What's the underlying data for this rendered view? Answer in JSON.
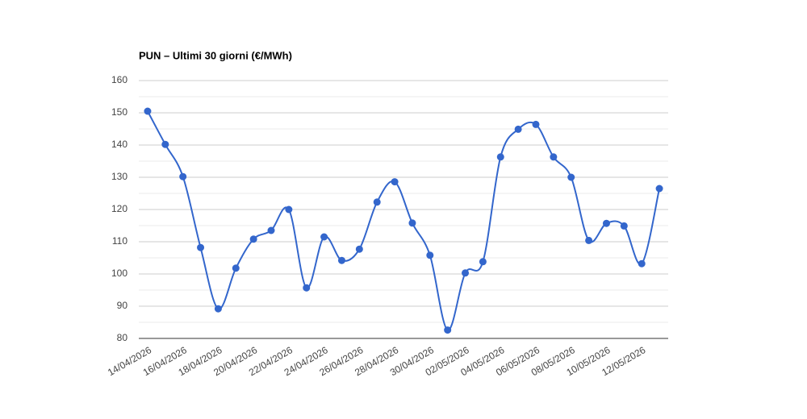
{
  "chart_data": {
    "type": "line",
    "title": "PUN – Ultimi 30 giorni (€/MWh)",
    "categories": [
      "14/04/2026",
      null,
      "16/04/2026",
      null,
      "18/04/2026",
      null,
      "20/04/2026",
      null,
      "22/04/2026",
      null,
      "24/04/2026",
      null,
      "26/04/2026",
      null,
      "28/04/2026",
      null,
      "30/04/2026",
      null,
      "02/05/2026",
      null,
      "04/05/2026",
      null,
      "06/05/2026",
      null,
      "08/05/2026",
      null,
      "10/05/2026",
      null,
      "12/05/2026",
      null
    ],
    "values": [
      150.5,
      140.2,
      130.2,
      108.2,
      89.2,
      101.8,
      110.8,
      113.5,
      120,
      95.7,
      111.5,
      104.2,
      107.7,
      122.3,
      128.6,
      115.8,
      105.8,
      82.6,
      100.3,
      103.8,
      136.3,
      144.9,
      146.4,
      136.3,
      130,
      110.4,
      115.7,
      114.9,
      103.2,
      126.5
    ],
    "color": "#3366cc",
    "ylim": [
      80,
      160
    ],
    "yticks": [
      80,
      90,
      100,
      110,
      120,
      130,
      140,
      150,
      160
    ],
    "grid": true
  }
}
